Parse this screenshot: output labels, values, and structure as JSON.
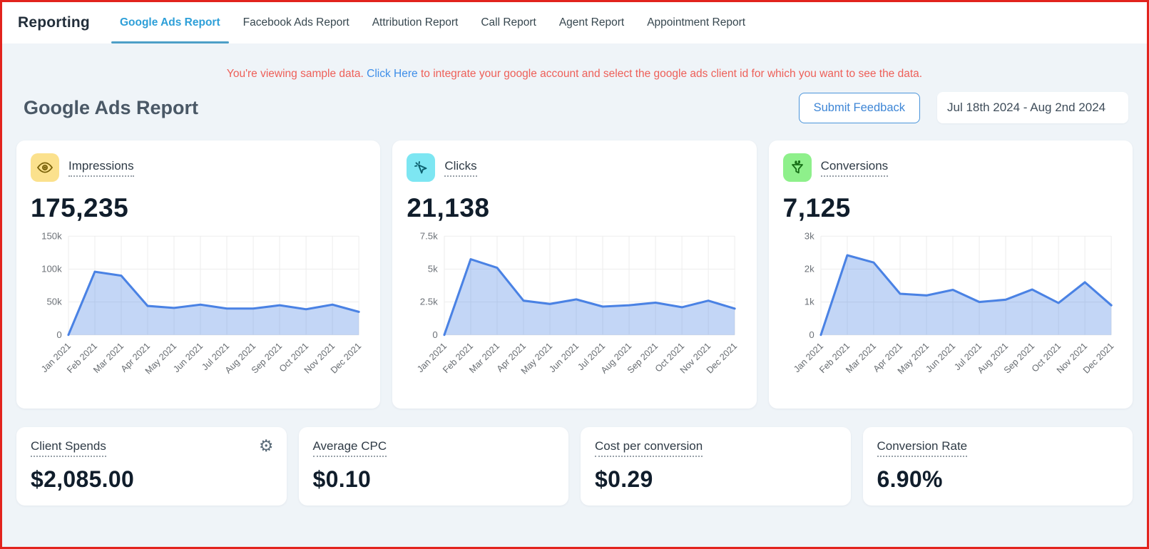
{
  "topbar": {
    "title": "Reporting",
    "tabs": [
      {
        "label": "Google Ads Report",
        "active": true
      },
      {
        "label": "Facebook Ads Report",
        "active": false
      },
      {
        "label": "Attribution Report",
        "active": false
      },
      {
        "label": "Call Report",
        "active": false
      },
      {
        "label": "Agent Report",
        "active": false
      },
      {
        "label": "Appointment Report",
        "active": false
      }
    ]
  },
  "notice": {
    "prefix": "You're viewing sample data. ",
    "link": "Click Here",
    "suffix": " to integrate your google account and select the google ads client id for which you want to see the data."
  },
  "header": {
    "title": "Google Ads Report",
    "feedback_button": "Submit Feedback",
    "date_range": "Jul 18th 2024 - Aug 2nd 2024"
  },
  "colors": {
    "frame_border": "#e2231d",
    "page_bg": "#eff4f8",
    "active_tab": "#2d9fd8",
    "tab_underline": "#4d9fc7",
    "notice_red": "#ee5f58",
    "link_blue": "#3e8ee8",
    "chart_line": "#4a82e4",
    "chart_fill": "rgba(74,130,228,0.33)",
    "impressions_icon_bg": "#fbe18d",
    "clicks_icon_bg": "#7de6f2",
    "conversions_icon_bg": "#8ef08b"
  },
  "metric_cards": [
    {
      "label": "Impressions",
      "value": "175,235",
      "icon": "eye-icon"
    },
    {
      "label": "Clicks",
      "value": "21,138",
      "icon": "cursor-click-icon"
    },
    {
      "label": "Conversions",
      "value": "7,125",
      "icon": "funnel-icon"
    }
  ],
  "chart_data": [
    {
      "type": "area",
      "title": "Impressions by month",
      "categories": [
        "Jan 2021",
        "Feb 2021",
        "Mar 2021",
        "Apr 2021",
        "May 2021",
        "Jun 2021",
        "Jul 2021",
        "Aug 2021",
        "Sep 2021",
        "Oct 2021",
        "Nov 2021",
        "Dec 2021"
      ],
      "values": [
        0,
        96000,
        90000,
        44000,
        41000,
        46000,
        40000,
        40000,
        45000,
        39000,
        46000,
        35000
      ],
      "ylim": [
        0,
        150000
      ],
      "ytick_labels": [
        "0",
        "50k",
        "100k",
        "150k"
      ],
      "grid": true,
      "xlabel": "",
      "ylabel": ""
    },
    {
      "type": "area",
      "title": "Clicks by month",
      "categories": [
        "Jan 2021",
        "Feb 2021",
        "Mar 2021",
        "Apr 2021",
        "May 2021",
        "Jun 2021",
        "Jul 2021",
        "Aug 2021",
        "Sep 2021",
        "Oct 2021",
        "Nov 2021",
        "Dec 2021"
      ],
      "values": [
        0,
        5750,
        5100,
        2600,
        2350,
        2700,
        2150,
        2250,
        2450,
        2100,
        2600,
        2000
      ],
      "ylim": [
        0,
        7500
      ],
      "ytick_labels": [
        "0",
        "2.5k",
        "5k",
        "7.5k"
      ],
      "grid": true,
      "xlabel": "",
      "ylabel": ""
    },
    {
      "type": "area",
      "title": "Conversions by month",
      "categories": [
        "Jan 2021",
        "Feb 2021",
        "Mar 2021",
        "Apr 2021",
        "May 2021",
        "Jun 2021",
        "Jul 2021",
        "Aug 2021",
        "Sep 2021",
        "Oct 2021",
        "Nov 2021",
        "Dec 2021"
      ],
      "values": [
        0,
        2420,
        2200,
        1250,
        1200,
        1370,
        1000,
        1070,
        1380,
        970,
        1600,
        900
      ],
      "ylim": [
        0,
        3000
      ],
      "ytick_labels": [
        "0",
        "1k",
        "2k",
        "3k"
      ],
      "grid": true,
      "xlabel": "",
      "ylabel": ""
    }
  ],
  "stat_cards": [
    {
      "label": "Client Spends",
      "value": "$2,085.00",
      "has_settings": true
    },
    {
      "label": "Average CPC",
      "value": "$0.10",
      "has_settings": false
    },
    {
      "label": "Cost per conversion",
      "value": "$0.29",
      "has_settings": false
    },
    {
      "label": "Conversion Rate",
      "value": "6.90%",
      "has_settings": false
    }
  ],
  "icons": {
    "settings": "gear-icon"
  }
}
